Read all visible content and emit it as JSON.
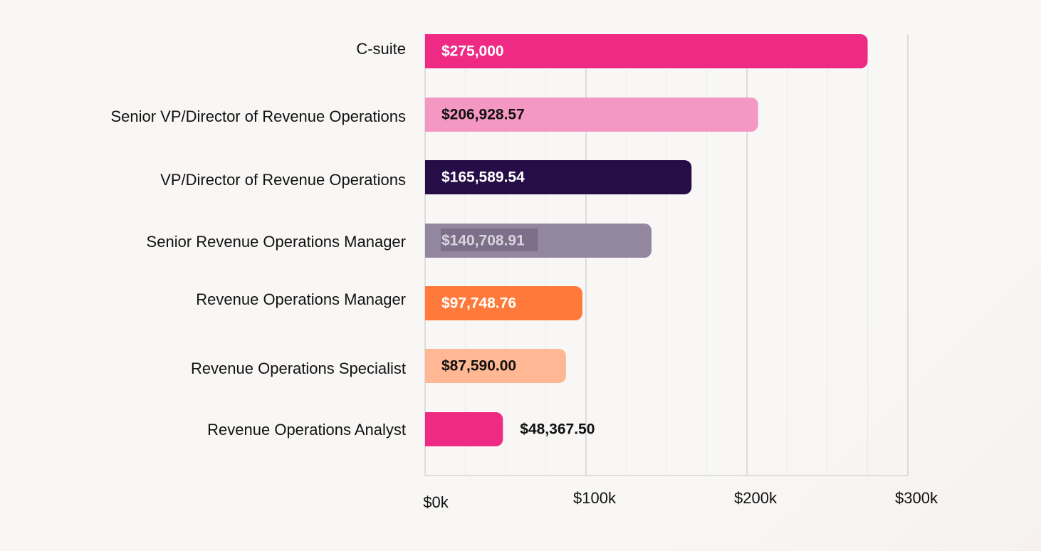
{
  "chart_data": {
    "type": "bar",
    "orientation": "horizontal",
    "categories": [
      "C-suite",
      "Senior VP/Director of Revenue Operations",
      "VP/Director of Revenue Operations",
      "Senior Revenue Operations Manager",
      "Revenue Operations Manager",
      "Revenue Operations Specialist",
      "Revenue Operations Analyst"
    ],
    "values": [
      275000,
      206928.57,
      165589.54,
      140708.91,
      97748.76,
      87590.0,
      48367.5
    ],
    "value_labels": [
      "$275,000",
      "$206,928.57",
      "$165,589.54",
      "$140,708.91",
      "$97,748.76",
      "$87,590.00",
      "$48,367.50"
    ],
    "bar_colors": [
      "#ee2a84",
      "#f497c3",
      "#260d47",
      "#93869f",
      "#ff7a3a",
      "#ffb893",
      "#ee2a84"
    ],
    "label_colors": [
      "#ffffff",
      "#111111",
      "#ffffff",
      "#d8d4dc",
      "#ffffff",
      "#111111",
      "#111111"
    ],
    "x_ticks": [
      0,
      100000,
      200000,
      300000
    ],
    "x_tick_labels": [
      "$0k",
      "$100k",
      "$200k",
      "$300k"
    ],
    "xlim": [
      0,
      300000
    ],
    "grid": true,
    "title": "",
    "xlabel": "",
    "ylabel": "",
    "legend": "none"
  }
}
